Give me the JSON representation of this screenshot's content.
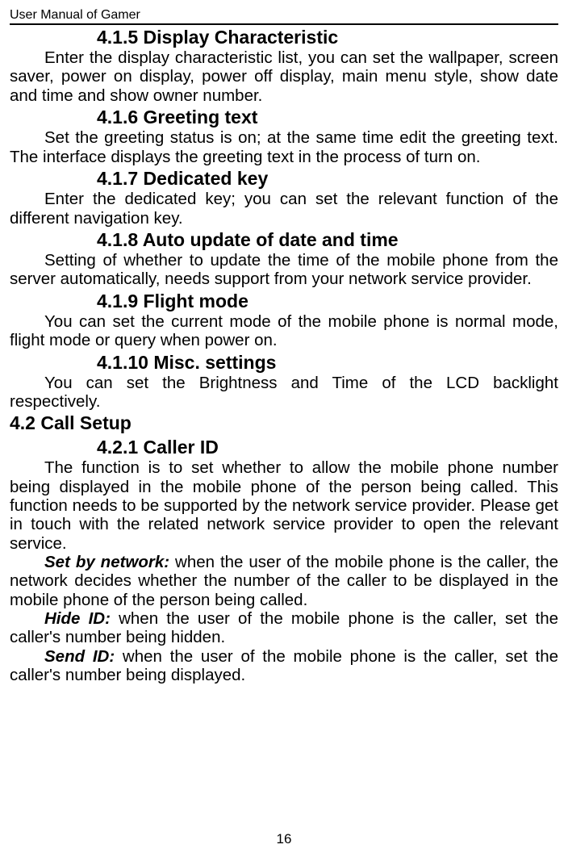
{
  "header": "User Manual of Gamer",
  "pageNumber": "16",
  "sections": [
    {
      "heading": "4.1.5 Display Characteristic",
      "paragraphs": [
        {
          "indent": true,
          "runs": [
            {
              "text": "Enter the display characteristic list, you can set the wallpaper, screen saver, power on display, power off display, main menu style, show date and time and show owner number."
            }
          ]
        }
      ]
    },
    {
      "heading": "4.1.6 Greeting text",
      "paragraphs": [
        {
          "indent": true,
          "runs": [
            {
              "text": "Set the greeting status is on; at the same time edit the greeting text. The interface displays the greeting text in the process of turn on."
            }
          ]
        }
      ]
    },
    {
      "heading": "4.1.7 Dedicated key",
      "paragraphs": [
        {
          "indent": true,
          "runs": [
            {
              "text": "Enter the dedicated key; you can set the relevant function of the different navigation key."
            }
          ]
        }
      ]
    },
    {
      "heading": "4.1.8 Auto update of date and time",
      "paragraphs": [
        {
          "indent": true,
          "runs": [
            {
              "text": "Setting of whether to update the time of the mobile phone from the server automatically, needs support from your network service provider."
            }
          ]
        }
      ]
    },
    {
      "heading": "4.1.9 Flight mode",
      "paragraphs": [
        {
          "indent": true,
          "runs": [
            {
              "text": "You can set the current mode of the mobile phone is normal mode, flight mode or query when power on."
            }
          ]
        }
      ]
    },
    {
      "heading": "4.1.10  Misc. settings",
      "paragraphs": [
        {
          "indent": true,
          "runs": [
            {
              "text": "You can set the Brightness and Time of the LCD backlight respectively."
            }
          ]
        }
      ]
    }
  ],
  "section42": {
    "heading": "4.2  Call Setup",
    "sub": {
      "heading": "4.2.1 Caller ID",
      "paragraphs": [
        {
          "indent": true,
          "runs": [
            {
              "text": "The function is to set whether to allow the mobile phone number being displayed in the mobile phone of the person being called. This function needs to be supported by the network service provider. Please get in touch with the related network service provider to open the relevant service."
            }
          ]
        },
        {
          "indent": true,
          "runs": [
            {
              "style": "bi",
              "text": "Set by network:"
            },
            {
              "text": " when the user of the mobile phone is the caller, the network decides whether the number of the caller to be displayed in the mobile phone of the person being called."
            }
          ]
        },
        {
          "indent": true,
          "runs": [
            {
              "style": "bi",
              "text": "Hide ID:"
            },
            {
              "text": " when the user of the mobile phone is the caller, set the caller's number being hidden."
            }
          ]
        },
        {
          "indent": true,
          "runs": [
            {
              "style": "bi",
              "text": "Send ID:"
            },
            {
              "text": " when the user of the mobile phone is the caller, set the caller's number being displayed."
            }
          ]
        }
      ]
    }
  }
}
